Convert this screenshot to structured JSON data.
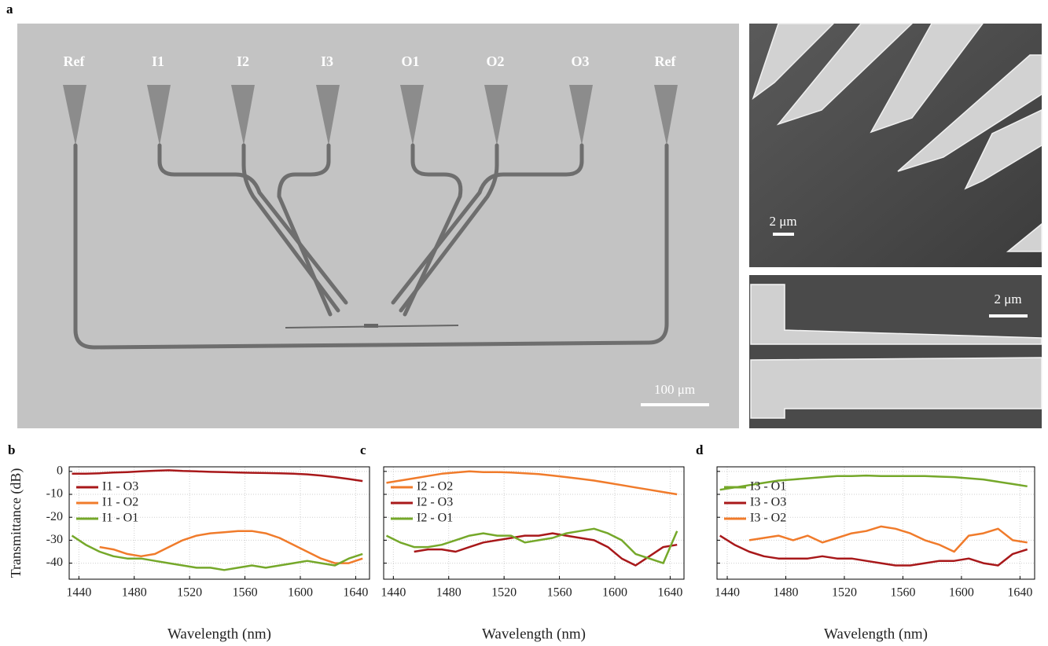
{
  "figure": {
    "panel_labels": [
      "a",
      "b",
      "c",
      "d"
    ],
    "ports": [
      "Ref",
      "I1",
      "I2",
      "I3",
      "O1",
      "O2",
      "O3",
      "Ref"
    ],
    "scale_bars": [
      "100 μm",
      "2 μm",
      "2 μm"
    ]
  },
  "chart_data": [
    {
      "type": "line",
      "ylabel": "Transmittance (dB)",
      "xlabel": "Wavelength (nm)",
      "x": [
        1435,
        1445,
        1455,
        1465,
        1475,
        1485,
        1495,
        1505,
        1515,
        1525,
        1535,
        1545,
        1555,
        1565,
        1575,
        1585,
        1595,
        1605,
        1615,
        1625,
        1635,
        1645
      ],
      "xlim": [
        1433,
        1650
      ],
      "xticks": [
        1440,
        1480,
        1520,
        1560,
        1600,
        1640
      ],
      "ylim": [
        -47,
        2
      ],
      "yticks": [
        0,
        -10,
        -20,
        -30,
        -40
      ],
      "grid": true,
      "legend": "upper left",
      "show_ytick_labels": true,
      "series": [
        {
          "name": "I1 - O3",
          "color": "#a8181a",
          "values": [
            -1,
            -1,
            -0.8,
            -0.5,
            -0.3,
            0,
            0.3,
            0.5,
            0.2,
            0,
            -0.2,
            -0.3,
            -0.5,
            -0.6,
            -0.7,
            -0.8,
            -1,
            -1.3,
            -1.8,
            -2.5,
            -3.3,
            -4.2
          ]
        },
        {
          "name": "I1 - O2",
          "color": "#f07b2b",
          "values": [
            null,
            null,
            -33,
            -34,
            -36,
            -37,
            -36,
            -33,
            -30,
            -28,
            -27,
            -26.5,
            -26,
            -26,
            -27,
            -29,
            -32,
            -35,
            -38,
            -40,
            -40,
            -38
          ]
        },
        {
          "name": "I1 - O1",
          "color": "#75a82a",
          "values": [
            -28,
            -32,
            -35,
            -37,
            -38,
            -38,
            -39,
            -40,
            -41,
            -42,
            -42,
            -43,
            -42,
            -41,
            -42,
            -41,
            -40,
            -39,
            -40,
            -41,
            -38,
            -36
          ]
        }
      ]
    },
    {
      "type": "line",
      "xlabel": "Wavelength (nm)",
      "x": [
        1435,
        1445,
        1455,
        1465,
        1475,
        1485,
        1495,
        1505,
        1515,
        1525,
        1535,
        1545,
        1555,
        1565,
        1575,
        1585,
        1595,
        1605,
        1615,
        1625,
        1635,
        1645
      ],
      "xlim": [
        1433,
        1650
      ],
      "xticks": [
        1440,
        1480,
        1520,
        1560,
        1600,
        1640
      ],
      "ylim": [
        -47,
        2
      ],
      "yticks": [
        0,
        -10,
        -20,
        -30,
        -40
      ],
      "grid": true,
      "legend": "upper left",
      "show_ytick_labels": false,
      "series": [
        {
          "name": "I2 - O2",
          "color": "#f07b2b",
          "values": [
            -5,
            -4,
            -3,
            -2,
            -1,
            -0.5,
            0,
            -0.3,
            -0.3,
            -0.5,
            -0.8,
            -1.2,
            -1.8,
            -2.5,
            -3.2,
            -4,
            -5,
            -6,
            -7,
            -8,
            -9,
            -10
          ]
        },
        {
          "name": "I2 - O3",
          "color": "#a8181a",
          "values": [
            null,
            null,
            -35,
            -34,
            -34,
            -35,
            -33,
            -31,
            -30,
            -29,
            -28,
            -28,
            -27,
            -28,
            -29,
            -30,
            -33,
            -38,
            -41,
            -37,
            -33,
            -32
          ]
        },
        {
          "name": "I2 - O1",
          "color": "#75a82a",
          "values": [
            -28,
            -31,
            -33,
            -33,
            -32,
            -30,
            -28,
            -27,
            -28,
            -28,
            -31,
            -30,
            -29,
            -27,
            -26,
            -25,
            -27,
            -30,
            -36,
            -38,
            -40,
            -26
          ]
        }
      ]
    },
    {
      "type": "line",
      "xlabel": "Wavelength (nm)",
      "x": [
        1435,
        1445,
        1455,
        1465,
        1475,
        1485,
        1495,
        1505,
        1515,
        1525,
        1535,
        1545,
        1555,
        1565,
        1575,
        1585,
        1595,
        1605,
        1615,
        1625,
        1635,
        1645
      ],
      "xlim": [
        1433,
        1650
      ],
      "xticks": [
        1440,
        1480,
        1520,
        1560,
        1600,
        1640
      ],
      "ylim": [
        -47,
        2
      ],
      "yticks": [
        0,
        -10,
        -20,
        -30,
        -40
      ],
      "grid": true,
      "legend": "upper left",
      "show_ytick_labels": false,
      "series": [
        {
          "name": "I3 - O1",
          "color": "#75a82a",
          "values": [
            -8,
            -7,
            -6,
            -5,
            -4,
            -3.5,
            -3,
            -2.5,
            -2,
            -2,
            -1.8,
            -2,
            -2,
            -2,
            -2,
            -2.3,
            -2.5,
            -3,
            -3.5,
            -4.5,
            -5.5,
            -6.5
          ]
        },
        {
          "name": "I3 - O3",
          "color": "#a8181a",
          "values": [
            -28,
            -32,
            -35,
            -37,
            -38,
            -38,
            -38,
            -37,
            -38,
            -38,
            -39,
            -40,
            -41,
            -41,
            -40,
            -39,
            -39,
            -38,
            -40,
            -41,
            -36,
            -34
          ]
        },
        {
          "name": "I3 - O2",
          "color": "#f07b2b",
          "values": [
            null,
            null,
            -30,
            -29,
            -28,
            -30,
            -28,
            -31,
            -29,
            -27,
            -26,
            -24,
            -25,
            -27,
            -30,
            -32,
            -35,
            -28,
            -27,
            -25,
            -30,
            -31
          ]
        }
      ]
    }
  ]
}
